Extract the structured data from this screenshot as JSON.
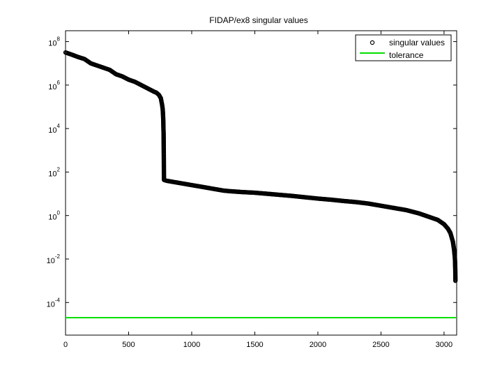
{
  "chart_data": {
    "type": "scatter",
    "title": "FIDAP/ex8 singular values",
    "xlabel": "",
    "ylabel": "",
    "xlim": [
      0,
      3100
    ],
    "ylog": true,
    "ylim_log10": [
      -5.5,
      8.5
    ],
    "x_ticks": [
      0,
      500,
      1000,
      1500,
      2000,
      2500,
      3000
    ],
    "x_tick_labels": [
      "0",
      "500",
      "1000",
      "1500",
      "2000",
      "2500",
      "3000"
    ],
    "y_ticks_log10": [
      -4,
      -2,
      0,
      2,
      4,
      6,
      8
    ],
    "y_tick_labels": [
      {
        "base": "10",
        "exp": "-4"
      },
      {
        "base": "10",
        "exp": "-2"
      },
      {
        "base": "10",
        "exp": "0"
      },
      {
        "base": "10",
        "exp": "2"
      },
      {
        "base": "10",
        "exp": "4"
      },
      {
        "base": "10",
        "exp": "6"
      },
      {
        "base": "10",
        "exp": "8"
      }
    ],
    "legend_position": "top-right",
    "series": [
      {
        "name": "singular values",
        "marker": "circle-open",
        "color": "#000000",
        "x": [
          0,
          50,
          100,
          150,
          200,
          250,
          300,
          350,
          400,
          450,
          500,
          550,
          600,
          650,
          700,
          720,
          740,
          755,
          765,
          770,
          773,
          775,
          776,
          777,
          778,
          779,
          780,
          781,
          785,
          790,
          800,
          850,
          900,
          950,
          1000,
          1100,
          1200,
          1250,
          1300,
          1400,
          1500,
          1600,
          1700,
          1800,
          1900,
          2000,
          2100,
          2200,
          2300,
          2400,
          2500,
          2600,
          2700,
          2800,
          2900,
          2950,
          3000,
          3030,
          3050,
          3060,
          3070,
          3075,
          3080,
          3083,
          3085,
          3086,
          3087,
          3088,
          3089,
          3090
        ],
        "y": [
          31600000.0,
          25100000.0,
          19500000.0,
          15800000.0,
          10000000.0,
          7940000.0,
          6310000.0,
          5010000.0,
          3160000.0,
          2510000.0,
          1780000.0,
          1410000.0,
          1000000.0,
          708000.0,
          501000.0,
          447000.0,
          355000.0,
          251000.0,
          126000.0,
          79400.0,
          39800.0,
          19900.0,
          10000.0,
          6310.0,
          1990.0,
          447.0,
          44.7,
          43.7,
          42.7,
          41.7,
          39.8,
          35.5,
          31.6,
          28.2,
          25.1,
          20.0,
          15.8,
          14.1,
          13.2,
          12.0,
          11.2,
          10.0,
          8.91,
          7.94,
          6.92,
          6.03,
          5.37,
          4.68,
          4.17,
          3.55,
          2.82,
          2.24,
          1.78,
          1.26,
          0.794,
          0.631,
          0.398,
          0.251,
          0.158,
          0.1,
          0.0631,
          0.0398,
          0.0251,
          0.0158,
          0.0126,
          0.01,
          0.00794,
          0.00501,
          0.00316,
          0.001
        ]
      },
      {
        "name": "tolerance",
        "marker": "line",
        "color": "#00e000",
        "x": [
          0,
          3100
        ],
        "y": [
          2e-05,
          2e-05
        ]
      }
    ]
  }
}
